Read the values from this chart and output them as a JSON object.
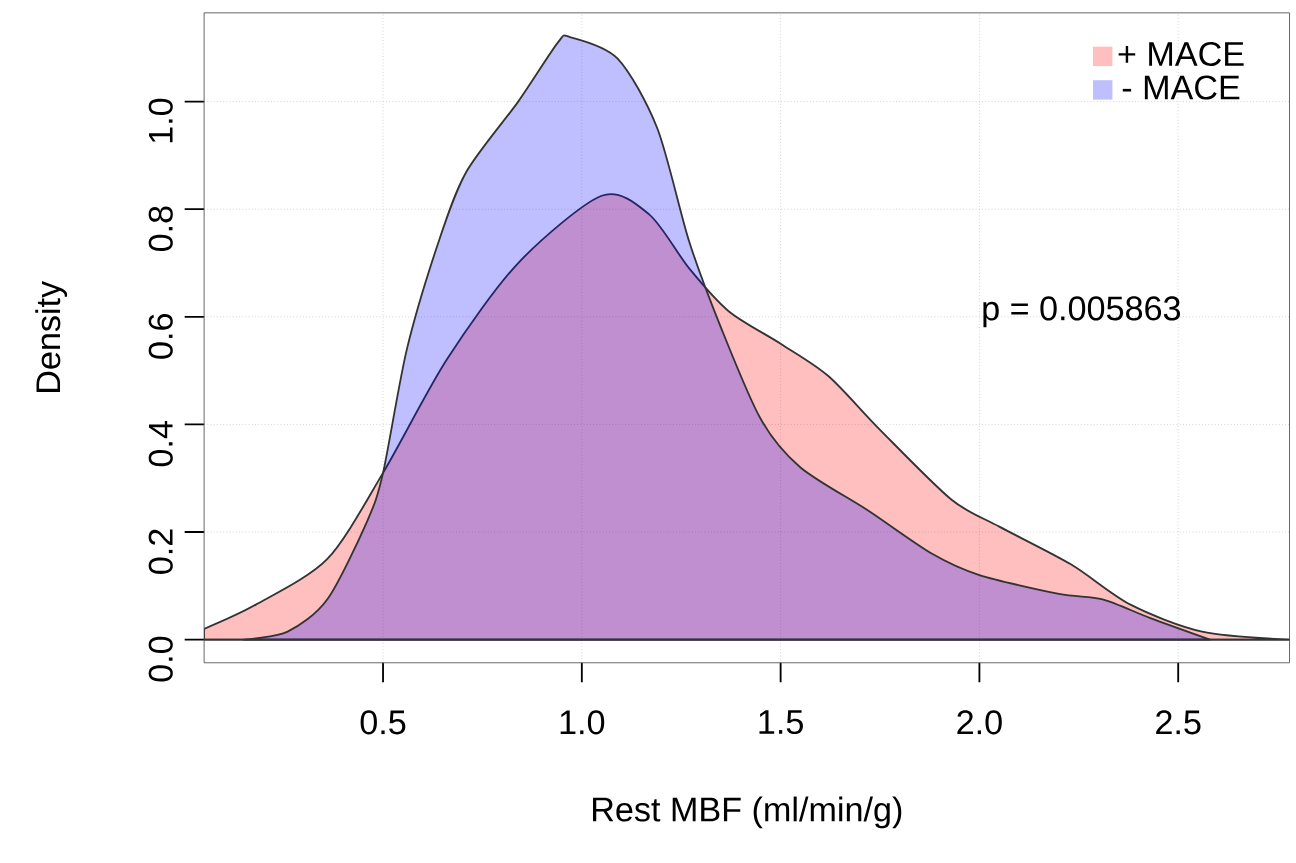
{
  "chart_data": {
    "type": "area",
    "xlabel": "Rest MBF (ml/min/g)",
    "ylabel": "Density",
    "xlim": [
      0.05,
      2.78
    ],
    "ylim": [
      -0.043,
      1.165
    ],
    "xticks": [
      0.5,
      {
        "value": 1,
        "label": "1.0"
      },
      1.5,
      {
        "value": 2,
        "label": "2.0"
      },
      2.5
    ],
    "yticks": [
      {
        "value": 0,
        "label": "0.0"
      },
      0.2,
      0.4,
      0.6,
      0.8,
      {
        "value": 1,
        "label": "1.0"
      }
    ],
    "grid": true,
    "legend": "top right",
    "line_style": "solid",
    "annotations": [
      "p = 0.005863"
    ],
    "series": [
      {
        "name": "+ MACE",
        "color": "#ff0000",
        "x": [
          0.05,
          0.18,
          0.36,
          0.5,
          0.66,
          0.84,
          1.05,
          1.17,
          1.27,
          1.37,
          1.5,
          1.62,
          1.75,
          1.93,
          2.05,
          2.23,
          2.38,
          2.56,
          2.78
        ],
        "values": [
          0.02,
          0.065,
          0.15,
          0.31,
          0.52,
          0.7,
          0.825,
          0.79,
          0.69,
          0.61,
          0.55,
          0.49,
          0.39,
          0.26,
          0.21,
          0.14,
          0.065,
          0.015,
          0.0
        ]
      },
      {
        "name": "- MACE",
        "color": "#0000ff",
        "x": [
          0.15,
          0.26,
          0.36,
          0.46,
          0.5,
          0.56,
          0.64,
          0.71,
          0.84,
          0.94,
          0.97,
          1.09,
          1.19,
          1.27,
          1.35,
          1.45,
          1.55,
          1.72,
          1.88,
          2.0,
          2.2,
          2.31,
          2.43,
          2.58
        ],
        "values": [
          0.0,
          0.015,
          0.075,
          0.22,
          0.31,
          0.54,
          0.74,
          0.87,
          1.0,
          1.11,
          1.12,
          1.08,
          0.95,
          0.74,
          0.58,
          0.41,
          0.32,
          0.24,
          0.16,
          0.12,
          0.085,
          0.075,
          0.04,
          0.0
        ]
      }
    ]
  }
}
